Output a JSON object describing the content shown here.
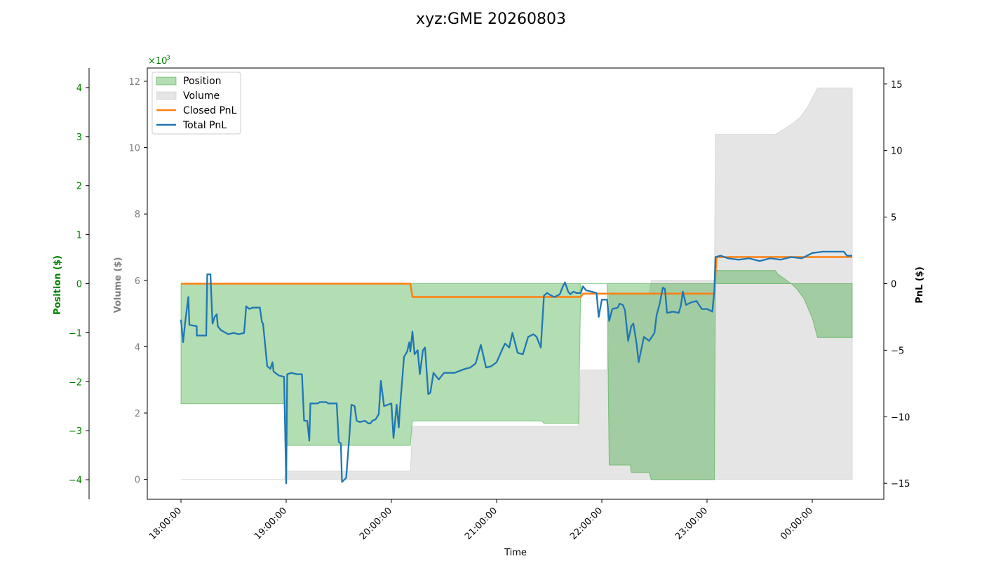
{
  "chart_data": {
    "type": "line",
    "title": "xyz:GME 20260803",
    "xlabel": "Time",
    "x_ticks": [
      "18:00:00",
      "19:00:00",
      "20:00:00",
      "21:00:00",
      "22:00:00",
      "23:00:00",
      "00:00:00"
    ],
    "x_range_hours": [
      17.68,
      24.68
    ],
    "grid": false,
    "legend_position": "top-left",
    "axes": {
      "position": {
        "label": "Position ($)",
        "range": [
          -4.4,
          4.4
        ],
        "ticks": [
          -4,
          -3,
          -2,
          -1,
          0,
          1,
          2,
          3,
          4
        ],
        "ticks_display": [
          "−4",
          "−3",
          "−2",
          "−1",
          "0",
          "1",
          "2",
          "3",
          "4"
        ],
        "scale_label": "×10",
        "scale_exp": "3",
        "color": "#008000"
      },
      "volume": {
        "label": "Volume ($)",
        "range": [
          -0.6,
          12.4
        ],
        "ticks": [
          0,
          2,
          4,
          6,
          8,
          10,
          12
        ],
        "color": "#808080"
      },
      "pnl": {
        "label": "PnL ($)",
        "range": [
          -16.2,
          16.2
        ],
        "ticks": [
          -15,
          -10,
          -5,
          0,
          5,
          10,
          15
        ],
        "ticks_display": [
          "−15",
          "−10",
          "−5",
          "0",
          "5",
          "10",
          "15"
        ],
        "color": "#000000"
      }
    },
    "series": [
      {
        "name": "Position",
        "kind": "area",
        "axis": "position",
        "color": "#2ca02c",
        "points": [
          [
            18.0,
            -2.45
          ],
          [
            18.98,
            -2.45
          ],
          [
            19.0,
            -3.3
          ],
          [
            20.18,
            -3.3
          ],
          [
            20.2,
            -2.8
          ],
          [
            21.43,
            -2.8
          ],
          [
            21.45,
            -2.85
          ],
          [
            21.78,
            -2.85
          ],
          [
            21.8,
            0.0
          ],
          [
            22.05,
            0.0
          ],
          [
            22.07,
            -3.7
          ],
          [
            22.27,
            -3.7
          ],
          [
            22.28,
            -3.85
          ],
          [
            22.45,
            -3.85
          ],
          [
            22.47,
            -4.0
          ],
          [
            23.07,
            -4.0
          ],
          [
            23.08,
            0.27
          ],
          [
            23.65,
            0.27
          ],
          [
            23.67,
            0.2
          ],
          [
            23.8,
            0.0
          ],
          [
            23.85,
            -0.1
          ],
          [
            23.92,
            -0.3
          ],
          [
            24.0,
            -0.7
          ],
          [
            24.05,
            -1.1
          ],
          [
            24.08,
            -1.1
          ],
          [
            24.38,
            -1.1
          ]
        ]
      },
      {
        "name": "Volume",
        "kind": "area",
        "axis": "volume",
        "color": "#cccccc",
        "points": [
          [
            18.0,
            0.0
          ],
          [
            18.98,
            0.0
          ],
          [
            19.0,
            0.25
          ],
          [
            20.18,
            0.25
          ],
          [
            20.2,
            1.6
          ],
          [
            21.78,
            1.6
          ],
          [
            21.8,
            3.3
          ],
          [
            22.05,
            3.3
          ],
          [
            22.07,
            5.6
          ],
          [
            22.45,
            5.6
          ],
          [
            22.47,
            6.0
          ],
          [
            23.07,
            6.0
          ],
          [
            23.08,
            10.4
          ],
          [
            23.65,
            10.4
          ],
          [
            23.7,
            10.5
          ],
          [
            23.8,
            10.7
          ],
          [
            23.88,
            10.9
          ],
          [
            23.95,
            11.2
          ],
          [
            24.0,
            11.5
          ],
          [
            24.05,
            11.8
          ],
          [
            24.38,
            11.8
          ]
        ]
      },
      {
        "name": "Closed PnL",
        "kind": "line",
        "axis": "pnl",
        "color": "#ff7f0e",
        "points": [
          [
            18.0,
            0.0
          ],
          [
            20.18,
            0.0
          ],
          [
            20.2,
            -1.0
          ],
          [
            21.8,
            -1.0
          ],
          [
            21.82,
            -0.75
          ],
          [
            23.07,
            -0.75
          ],
          [
            23.09,
            2.0
          ],
          [
            24.38,
            2.0
          ]
        ]
      },
      {
        "name": "Total PnL",
        "kind": "line",
        "axis": "pnl",
        "color": "#1f77b4",
        "points": [
          [
            18.0,
            -2.7
          ],
          [
            18.02,
            -4.4
          ],
          [
            18.04,
            -2.9
          ],
          [
            18.07,
            -1.0
          ],
          [
            18.08,
            -3.1
          ],
          [
            18.15,
            -3.2
          ],
          [
            18.15,
            -3.9
          ],
          [
            18.24,
            -3.9
          ],
          [
            18.25,
            0.7
          ],
          [
            18.28,
            0.7
          ],
          [
            18.3,
            -3.0
          ],
          [
            18.32,
            -2.5
          ],
          [
            18.34,
            -2.3
          ],
          [
            18.35,
            -3.2
          ],
          [
            18.38,
            -3.5
          ],
          [
            18.45,
            -3.8
          ],
          [
            18.5,
            -3.7
          ],
          [
            18.55,
            -3.8
          ],
          [
            18.6,
            -3.7
          ],
          [
            18.62,
            -1.7
          ],
          [
            18.65,
            -1.9
          ],
          [
            18.68,
            -1.8
          ],
          [
            18.75,
            -1.8
          ],
          [
            18.77,
            -2.9
          ],
          [
            18.78,
            -3.0
          ],
          [
            18.82,
            -6.2
          ],
          [
            18.85,
            -6.4
          ],
          [
            18.87,
            -5.9
          ],
          [
            18.88,
            -6.6
          ],
          [
            18.93,
            -6.9
          ],
          [
            18.98,
            -7.0
          ],
          [
            19.0,
            -15.0
          ],
          [
            19.01,
            -6.8
          ],
          [
            19.05,
            -6.7
          ],
          [
            19.1,
            -6.8
          ],
          [
            19.15,
            -6.8
          ],
          [
            19.17,
            -10.3
          ],
          [
            19.2,
            -10.3
          ],
          [
            19.22,
            -11.8
          ],
          [
            19.23,
            -9.0
          ],
          [
            19.3,
            -9.0
          ],
          [
            19.32,
            -8.9
          ],
          [
            19.38,
            -8.9
          ],
          [
            19.4,
            -9.0
          ],
          [
            19.48,
            -9.0
          ],
          [
            19.5,
            -11.9
          ],
          [
            19.52,
            -12.0
          ],
          [
            19.53,
            -14.9
          ],
          [
            19.57,
            -14.6
          ],
          [
            19.6,
            -11.5
          ],
          [
            19.62,
            -9.1
          ],
          [
            19.65,
            -9.2
          ],
          [
            19.67,
            -10.3
          ],
          [
            19.7,
            -10.4
          ],
          [
            19.75,
            -10.3
          ],
          [
            19.78,
            -10.5
          ],
          [
            19.8,
            -10.5
          ],
          [
            19.82,
            -10.3
          ],
          [
            19.85,
            -10.2
          ],
          [
            19.88,
            -9.8
          ],
          [
            19.9,
            -7.3
          ],
          [
            19.93,
            -9.2
          ],
          [
            20.0,
            -9.0
          ],
          [
            20.02,
            -11.6
          ],
          [
            20.05,
            -9.1
          ],
          [
            20.07,
            -10.8
          ],
          [
            20.08,
            -9.5
          ],
          [
            20.12,
            -5.5
          ],
          [
            20.15,
            -5.1
          ],
          [
            20.17,
            -4.4
          ],
          [
            20.18,
            -5.1
          ],
          [
            20.2,
            -3.6
          ],
          [
            20.22,
            -5.3
          ],
          [
            20.25,
            -5.0
          ],
          [
            20.27,
            -6.8
          ],
          [
            20.3,
            -5.0
          ],
          [
            20.32,
            -4.8
          ],
          [
            20.35,
            -8.3
          ],
          [
            20.37,
            -8.2
          ],
          [
            20.4,
            -6.7
          ],
          [
            20.45,
            -7.2
          ],
          [
            20.5,
            -6.7
          ],
          [
            20.6,
            -6.7
          ],
          [
            20.7,
            -6.4
          ],
          [
            20.75,
            -6.3
          ],
          [
            20.8,
            -6.0
          ],
          [
            20.85,
            -4.6
          ],
          [
            20.9,
            -6.3
          ],
          [
            20.95,
            -6.2
          ],
          [
            21.0,
            -5.9
          ],
          [
            21.05,
            -5.0
          ],
          [
            21.08,
            -4.5
          ],
          [
            21.12,
            -4.8
          ],
          [
            21.15,
            -3.7
          ],
          [
            21.2,
            -5.2
          ],
          [
            21.25,
            -5.3
          ],
          [
            21.3,
            -4.0
          ],
          [
            21.35,
            -3.8
          ],
          [
            21.38,
            -4.0
          ],
          [
            21.42,
            -4.8
          ],
          [
            21.45,
            -0.9
          ],
          [
            21.48,
            -0.7
          ],
          [
            21.52,
            -0.9
          ],
          [
            21.55,
            -1.0
          ],
          [
            21.6,
            -0.8
          ],
          [
            21.63,
            -0.2
          ],
          [
            21.65,
            0.1
          ],
          [
            21.68,
            -0.6
          ],
          [
            21.7,
            -0.8
          ],
          [
            21.73,
            -0.6
          ],
          [
            21.76,
            -0.7
          ],
          [
            21.8,
            -0.7
          ],
          [
            21.82,
            -0.2
          ],
          [
            21.85,
            -0.5
          ],
          [
            21.9,
            -0.6
          ],
          [
            21.95,
            -0.7
          ],
          [
            21.97,
            -2.5
          ],
          [
            22.0,
            -1.2
          ],
          [
            22.05,
            -1.2
          ],
          [
            22.07,
            -2.8
          ],
          [
            22.1,
            -1.9
          ],
          [
            22.15,
            -1.8
          ],
          [
            22.17,
            -1.5
          ],
          [
            22.2,
            -1.6
          ],
          [
            22.22,
            -2.0
          ],
          [
            22.25,
            -4.3
          ],
          [
            22.28,
            -3.2
          ],
          [
            22.3,
            -3.0
          ],
          [
            22.33,
            -4.5
          ],
          [
            22.35,
            -5.9
          ],
          [
            22.4,
            -4.0
          ],
          [
            22.45,
            -4.3
          ],
          [
            22.5,
            -3.7
          ],
          [
            22.52,
            -2.4
          ],
          [
            22.55,
            -1.5
          ],
          [
            22.58,
            -0.3
          ],
          [
            22.6,
            -0.4
          ],
          [
            22.62,
            -2.2
          ],
          [
            22.68,
            -2.1
          ],
          [
            22.73,
            -2.2
          ],
          [
            22.75,
            -1.7
          ],
          [
            22.77,
            -0.6
          ],
          [
            22.8,
            -1.6
          ],
          [
            22.85,
            -1.4
          ],
          [
            22.9,
            -1.3
          ],
          [
            22.95,
            -1.9
          ],
          [
            23.0,
            -1.9
          ],
          [
            23.05,
            -2.1
          ],
          [
            23.07,
            -0.5
          ],
          [
            23.08,
            2.0
          ],
          [
            23.13,
            2.1
          ],
          [
            23.2,
            1.9
          ],
          [
            23.3,
            1.8
          ],
          [
            23.4,
            1.9
          ],
          [
            23.5,
            1.7
          ],
          [
            23.6,
            1.9
          ],
          [
            23.7,
            1.8
          ],
          [
            23.8,
            2.0
          ],
          [
            23.9,
            1.9
          ],
          [
            24.0,
            2.3
          ],
          [
            24.1,
            2.4
          ],
          [
            24.2,
            2.4
          ],
          [
            24.3,
            2.4
          ],
          [
            24.33,
            2.1
          ],
          [
            24.38,
            2.1
          ]
        ]
      }
    ]
  }
}
